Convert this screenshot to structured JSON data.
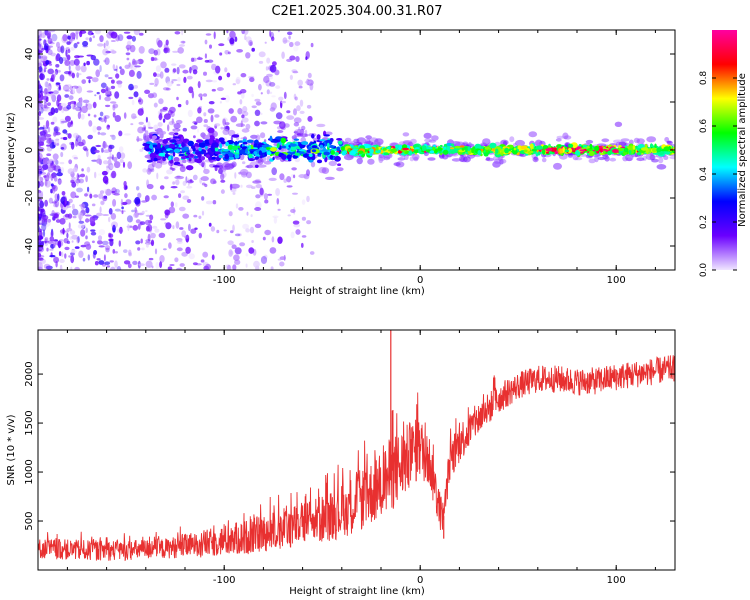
{
  "title": "C2E1.2025.304.00.31.R07",
  "chart_data": [
    {
      "type": "heatmap",
      "name": "spectrogram",
      "xlabel": "Height of straight line (km)",
      "ylabel": "Frequency (Hz)",
      "xlim": [
        -195,
        130
      ],
      "ylim": [
        -50,
        50
      ],
      "xticks": [
        -100,
        0,
        100
      ],
      "yticks": [
        -40,
        -20,
        0,
        20,
        40
      ],
      "xtick_labels": [
        "-100",
        "0",
        "100"
      ],
      "ytick_labels": [
        "-40",
        "-20",
        "0",
        "20",
        "40"
      ],
      "colorbar": {
        "label": "Normalized spectral amplitude",
        "range": [
          0,
          1
        ],
        "ticks": [
          0.0,
          0.2,
          0.4,
          0.6,
          0.8
        ],
        "tick_labels": [
          "0.0",
          "0.2",
          "0.4",
          "0.6",
          "0.8"
        ],
        "colors": [
          "#f0e6ff",
          "#6a00ff",
          "#0000ff",
          "#00ffff",
          "#00ff00",
          "#ffff00",
          "#ff0000",
          "#ff00a0"
        ]
      },
      "description_points": {
        "noise_region_x": [
          -195,
          -60
        ],
        "signal_onset_x": -140,
        "signal_band_center_hz": 0,
        "peak_region_x": [
          70,
          100
        ]
      }
    },
    {
      "type": "line",
      "name": "snr",
      "xlabel": "Height of straight line (km)",
      "ylabel": "SNR (10 * v/v)",
      "xlim": [
        -195,
        130
      ],
      "ylim": [
        0,
        2450
      ],
      "xticks": [
        -100,
        0,
        100
      ],
      "yticks": [
        500,
        1000,
        1500,
        2000
      ],
      "xtick_labels": [
        "-100",
        "0",
        "100"
      ],
      "ytick_labels": [
        "500",
        "1000",
        "1500",
        "2000"
      ],
      "series": [
        {
          "name": "SNR",
          "color": "#e83030",
          "x": [
            -195,
            -170,
            -150,
            -130,
            -110,
            -90,
            -70,
            -50,
            -40,
            -30,
            -20,
            -15,
            -10,
            -5,
            0,
            5,
            10,
            12,
            15,
            20,
            30,
            40,
            50,
            60,
            70,
            80,
            90,
            100,
            110,
            120,
            130
          ],
          "y": [
            220,
            200,
            200,
            220,
            270,
            330,
            420,
            520,
            600,
            720,
            860,
            980,
            1050,
            1170,
            1250,
            1100,
            600,
            550,
            1100,
            1300,
            1550,
            1750,
            1880,
            1950,
            1950,
            1920,
            1930,
            1970,
            2000,
            2030,
            2060
          ],
          "spread": [
            150,
            150,
            150,
            150,
            200,
            250,
            300,
            350,
            400,
            450,
            500,
            550,
            550,
            500,
            450,
            400,
            300,
            200,
            300,
            300,
            250,
            220,
            200,
            200,
            200,
            200,
            200,
            200,
            200,
            200,
            200
          ]
        }
      ],
      "spikes": [
        {
          "x": -15,
          "y": 2450
        },
        {
          "x": 12,
          "y": 320
        }
      ]
    }
  ]
}
